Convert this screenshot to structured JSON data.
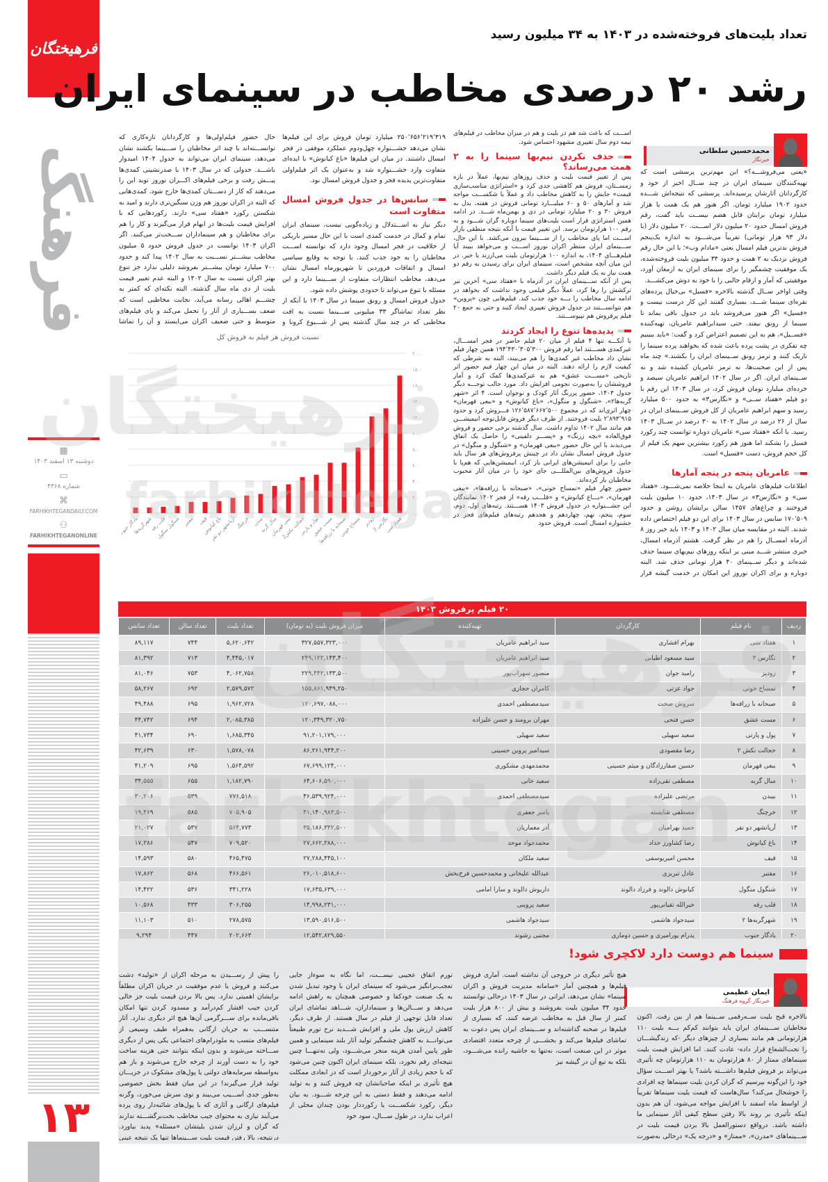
{
  "brand": {
    "logo_text": "فرهیختگان",
    "side_word": "فرهنگ",
    "watermark_fa": "فرهیختگان",
    "watermark_en": "farhikhtegan",
    "accent": "#ed1c24",
    "gray": "#8d8e90"
  },
  "issue": {
    "date": "دوشنبه ۱۳ اسفند ۱۴۰۳",
    "number": "شماره ۴۳۶۸",
    "website": "FARHIKHTEGANDAILY.COM",
    "social": "FARHIKHTEGANONLINE",
    "page_number": "۱۳",
    "icons": [
      "calendar-icon",
      "newspaper-icon",
      "web-icon",
      "social-network-icon"
    ]
  },
  "article": {
    "kicker": "تعداد بلیت‌های فروخته‌شده در ۱۴۰۳ به ۳۴ میلیون رسید",
    "headline": "رشد ۲۰ درصدی مخاطب در سینمای ایران",
    "author": {
      "name": "محمدحسین سلطانی",
      "role": "خبرنگار"
    },
    "col1": {
      "p": [
        "«یعنی می‌فروشـــه؟» این مهم‌ترین پرسشی است که تهیه‌کنندگان سینمای ایران در چند ســال اخیر از خود و کارگردانان آثارشان پرسیده‌اند. پرسشی که نتیجه‌اش شـــده حدود ۱۹۰۲ میلیارد تومان. اگر هنوز هم یک همت یا هزار میلیارد تومان برایتان قابل هضم نیســت باید گفت، رقم فروش امسال حدود ۲۰ میلیون دلار اســـت. ۲۰ میلیون دلار (با دلار ۹۳ هزار تومانی) تقریباً می‌شـــود به اندازه یک‌پنجم فروش بدترین فیلم امسال یعنی «مادام وب»؛ با این حال رقم فروش نزدیک به ۲ همت و حدود ۳۴ میلیون بلیت فروخته‌شده، یک موفقیت چشمگیر را برای سینمای ایران به ارمغان آورد، موفقیتی که آمار و ارقام جالبی را با خود به دوش می‌کشـــد.",
        "وقتی اواخر ســال گذشته بالاخره «فسیل» بی‌خیال پرده‌های نقره‌ای سینما شـــد، بسیاری گفتند این کار درست نیست و «فسیل» اگر هنوز می‌فروشد باید در جدول باقی بماند تا سینما از رونق نیفتد. حتی سیدابراهیم عامریان، تهیه‌کننده «فســیل»، هم به این تصمیم اعتراض کرد و گفت: «باید ببینیم چه تفکری در پشت پرده باعث شده که بخواهند پرده سینما را تاریک کنند و ترمز رونق ســینمای ایران را بکشند.» چند ماه پس از این صحبت‌ها، نه ترمز عامریان کشیده شد و نه ســینمای ایران. اگر در سال ۱۴۰۲ ابراهیم عامریان سیصد و خرده‌ای میلیارد تومان فروش کرد، در سال ۱۴۰۳ این رقم با دو فیلم «هفتاد ســی» و «نگارس۳» به حدود ۵۰۰ میلیارد رسید و سهم ابراهیم عامریان از کل فروش ســینمای ایران در سال از ۲۶ درصد در سال ۱۴۰۲ به ۳۰ درصد در ســال ۱۴۰۳ رسید. با آنکه «هفتاد سی» عامریان دوباره توانست چند رکورد فسیل را بشکند اما هنوز هم رکورد بیشترین سهم یک فیلم از کل حجم فروش، دست «فسیل» است."
      ],
      "sub1": "عامریان پنجه در پنجه آمارها",
      "p2": "اطلاعات فیلم‌های عامریان به اینجا خلاصه نمی‌شـــود. «هفتاد سی» و «نگارس۳» در سال ۱۴۰۳، حدود ۱۰ میلیون بلیت فروختند و چراغ‌های ۱۴۵۷ سالن برایشان روشن و حدود ۱۷۰٬۵۰۹ سانس در سال ۱۴۰۳ برای این دو فیلم اختصاص داده شدند. البته در مقایسه میان سال ۱۴۰۲ و ۱۴۰۳ باید خبر روز ۸ آذرماه امســال را هم در نظر گرفت. هشتم آذرماه امسال، خبری منتشر شـــد مبنی بر اینکه روزهای نیم‌بهای سینما حذف شده‌اند و دیگر ســینمای ۴۰ هزار تومانی حذف شد. البته دوباره و برای اکران نوروز این امکان در خدمت گیشه قرار گرفت اما به هر ترتیب اثرش را روی گیشه ســال ۱۴۰۳ گذاشت. اگر کمی دقیق‌تر به جدول گیشه نگاه کنید، متوجه تفاوت ۱۲۰ هزار نفره میان «مست عشق» و «صبحانه با زرافه‌ها» می‌شوید. با این حال میزان فـــروش «صبحانه با زرافه‌ها» حدود ۳۰۰ میلیون تومان از «مست عشق» بیشتر است. البته این تفاوت در تماشاگر و فروش تنها مربوط به نیم‌بها شدن سینما نیست. افزایش قیمت بلیت هم در دی‌ماه ۱۴۰۳ به ۸۰ هزار تومان و قرار گرفتن این عدد کنار حذف بلیت نیم‌بها، از اتفاقاتی"
    },
    "col2": {
      "p0": "اســـت که باعث شد هم در بلیت و هم در میزان مخاطب در فیلم‌های نیمه دوم سال تغییری مشهود احساس شود.",
      "sub1": "حذف نکردن نیم‌بها سینما را به ۲ همت می‌رساند؟",
      "p1": "پس از تغییر قیمت بلیت و حذف روزهای نیم‌بها، عملاً در بازه زمســتان، فروش هم کاهشی جدی کرد و «استراتژی مناسب‌سازی قیمت» جایش را به کاهش مخاطب داد و عملاً با شکســـت مواجه شد و آمارهای ۵۰ و ۶۰ میلیـــارد تومانی فروش در هفته، بدل به فروش ۳۰ و ۲۰ میلیارد تومانی در دی و بهمن‌ماه شـــد. در ادامه همین استراتژی قرار است بلیت‌های سینما دوباره گران شـــود و به رقم ۱۰۰ هزارتومان برسد. این تغییر قیمت با آنکه نتیجه منطقی بازار اســـت اما پای مخاطب را از ســـینما بیرون می‌کشد. با این حال، ســـینمای ایران منتظر اکران نوروز اســـت و می‌خواهد ببیند آیا فیلم‌هـــای ۱۴۰۴، به اندازه ۱۰۰ هزارتومان بلیت می‌ارزند یا خیر. در این میان آنچه مشخص است، سینمای ایران برای رسیدن به رقم دو همت نیاز به یک فیلم دیگر داشت.",
      "p2": "پس از آنکه ســـینمای ایران در آذرماه با «هفتاد سی» آخرین تیر ترکشش را رها کرد، عملاً دیگر فیلمی وجود نداشت که بخواهد در ادامه سال مخاطب را بـــه خود جذب کند. فیلم‌هایی چون «پروین» هم نتوانســـتند در جدول فروش تغییری ایجاد کنند و حتی به جمع ۲۰ فیلم پرفروش هم نپیوســـتند.",
      "sub2": "پدیده‌ها تنوع را ایجاد کردند",
      "p3": "با آنکـــه تنها ۴ فیلم از میان ۲۰ فیلم حاضر در فجر امســـال، غیرکمدی هســـتند اما رقم فروش ۱۹۴٬۴۳۰٬۳۰۵٬۳۰۰ همین چهار فیلم نشان داد مخاطب غیر کمدی‌ها را هم می‌بیند، البته به شرطی که کیفیت لازم را ارائه دهند. البته در میان این چهار فیم حضور اثر تاریخی «مســـت عشق» هم به غیرکمدی‌ها کمک کرد و آمار فروششان را به‌صورت نجومی افزایش داد. مورد جالب توجـــه دیگر جدول ۱۴۰۳، حضور پررنگ آثار کودک و نوجوان است. ۴ اثر «شهر گربه‌ها۲»، «شنگول و منگول»، «باغ کیانوش» و «ببعی قهرمان» چهار اثری‌اند که در مجموع ۱۲۶٬۵۸۷٬۶۶۷٬۵۰۰ فـــروش کرد و حدود ۲٬۸۹۳٬۹۱۵ بلیت فروختند. از طرف دیگر فروش قابل‌توجه انیمیشـــن هم مانند سال ۱۴۰۲ تداوم داشت. سال گذشته برخی حضور و فروش فوق‌العاده «بچه زرنگ» و «پســـر دلفینی» را حاصل یک اتفاق می‌دیدند با این حال حضور «ببعی قهرمان» و «شنگول و منگول» در جدول فروش امسال نشان داد در چینش پرفروش‌های هر سال باید جایی را برای انیمیشن‌های ایرانی باز کرد، انیمیشن‌هایی که هم‌پا با جدول فروش‌های بین‌المللـــی جای خود را در میان آثار محبوب مخاطبان باز کرده‌اند.",
      "p4": "حضور چهار فیلم «تمساح خونی»، «صبحانه با زرافه‌ها»، «ببعی قهرمان»، «بـــاغ کیانوش» و «قلـــب رقه» از فجر ۱۴۰۲ نمایندگان این جشـــنواره در جدول فروش ۱۴۰۳ هســـتند. رتبه‌های اول، دوم، سوم، پنجم، نهم، چهاردهم و هجدهم رتبه‌های فیلم‌های فجر در جشنواره امسال است. فروش حدود"
    },
    "col3": {
      "p0": "۲۵۰٬۶۵۶٬۲۱۹٬۳۱۹ میلیارد تومان فروش برای این فیلم‌ها نشان می‌دهد جشـــنواره چهل‌ودوم عملکرد موفقی در فجر امسال داشتند. در میان این فیلم‌ها «باغ کیانوش» با ایده‌ای متفاوت وارد جشـــنواره شد و به‌عنوان یک اثر فیلم‌اولی متفاوت‌ترین پدیده فجر و جدول فروش امسال بود.",
      "sub1": "سانس‌ها در جدول فروش امسال متفاوت است",
      "p1": "دیگر نیاز به اســـتدلال و زیاده‌گویی نیست، سینمای ایران تمام و کمال در خدمت کمدی است با این حال مسیر باریکی از خلاقیت در فجر امسال وجود دارد که توانسته اســـت مخاطبان را به خود جذب کنند. با توجه به وقایع سیاسی امسال و اتفاقات فروردین تا شهریورماه امسال نشان می‌دهد، مخاطب انتظارات متفاوت از ســـینما دارد و این مسئله با تنوع می‌تواند تا حدودی پوشش داده شود.",
      "p2": "جدول فروش امسال و رونق سینما در سال ۱۴۰۳ با آنکه از نظر تعداد تماشاگر ۳۳ میلیونی ســـینما نسبت به افت مخاطبی که در چند سال گذشته پس از شـــیوع کرونا و حوادث اجتماعی و سیاسی تجربه شد، قابل توجه است اما هنوز فاصله زیادی با مخاطب ۸۰ و ۸۱ میلیونی سال‌های ۱۳۶۶ و ۱۳۶۹ دارد؛ آن هم در زمانی که جمعیت کشـــور با الان قابل مقایسه نبود. با این"
    },
    "col4": {
      "p0": "حال حضور فیلم‌اولی‌ها و کارگردانان تازه‌کاری که توانســـته‌اند با چند اثر مخاطبان را ســـینما بکشند نشان می‌دهد، سینمای ایران می‌تواند به جدول ۱۴۰۴ امیدوار باشـــد. جدولی که در سال ۱۴۰۳ با صدرنشینی کمدی‌ها پیـــش رفت و برخی فیلم‌های اکـــران نوروز نوید این را می‌دهند که کار از دســـتان کمدی‌ها خارج شود. کمدی‌هایی که البته در اکران نوروز هم وزن سنگین‌تری دارند و امید به شکستن رکورد «هفتاد سی» دارند. رکوردهایی که با افزایش قیمت بلیت‌ها در ابهام قرار می‌گیرند و کار را هم برای مخاطبان و هم سینماداران ســـخت‌تر می‌کنند. اگر اکران ۱۴۰۳ توانست در جدول فروش حدود ۵ میلیون مخاطب بیشـــتر نســـبت به سال ۱۴۰۲ پیدا کند و حدود ۷۰۰ میلیارد تومان بیشـــتر بفروشد دلیلی ندارد جز تنوع بهتر اکران نسبت به سال ۱۴۰۲ و البته عدم تغییر قیمت بلیت از دی ماه سال گذشته. البته نکته‌ای که کمتر به چشـــم اهالی رسانه می‌آید، نجابت مخاطبی است که ضعف بســـیاری از آثار را تحمل می‌کند و پای فیلم‌های متوسط و حتی ضعیف اکران می‌ایستد و آن را تماشا می‌کند. مخاطبی که با افزایش هزینه‌ها و البته ایرادهای آثار هنوز هم ســـینما را خالی نکرده و برای زنده نگه‌داشتن پرده نقره‌ای به تغییرات قیمت بلیت تن می‌دهد. مخاطبی که توقعی از سینما ندارد به جز افزایش کیفیت فیلم‌ها."
    }
  },
  "chart_data": {
    "type": "bar",
    "title": "نسبت فروش هر فیلم به فروش کل",
    "xlabel": "",
    "ylabel": "",
    "ylim": [
      0,
      20
    ],
    "yticks": [
      "۰.۰",
      "۲.۰",
      "۴.۰",
      "۶.۰",
      "۸.۰",
      "۱۰.۰",
      "۱۲.۰",
      "۱۴.۰",
      "۱۶.۰",
      "۱۸.۰",
      "۲۰.۰"
    ],
    "grid": true,
    "bar_color": "#ed1c24",
    "categories": [
      "یادگار جنوب",
      "شهرگربه‌ها",
      "قلب رقه",
      "شنگول منگول",
      "مفتبر",
      "قیف",
      "باغ کیانوش",
      "آرپانشهر دو نفر",
      "خرچنگ",
      "بیبدن",
      "سال گربه",
      "بیبی قهرمان",
      "خجالت نکش2",
      "پول و پارتی",
      "مست عشق",
      "صبحانه با زرافه‌ها",
      "تمساح خونی",
      "زودپز",
      "نگارس 3",
      "هفتاد سی"
    ],
    "values": [
      0.7,
      0.7,
      0.8,
      0.9,
      1.4,
      1.4,
      1.5,
      1.9,
      2.2,
      2.4,
      3.4,
      3.6,
      4.5,
      4.8,
      6.3,
      6.3,
      8.2,
      12.1,
      13.1,
      17.2
    ]
  },
  "table": {
    "title": "۲۰ فیلم پرفروش ۱۴۰۳",
    "headers": [
      "ردیف",
      "نام فیلم",
      "کارگردان",
      "تهیه‌کننده",
      "میزان فروش بلیت (به تومان)",
      "تعداد بلیت",
      "تعداد سالن",
      "تعداد سانس"
    ],
    "rows": [
      [
        "۱",
        "هفتاد سی",
        "بهرام افشاری",
        "سید ابراهیم عامریان",
        "۳۲۷,۵۵۷,۳۲۳,۰۰۰",
        "۵,۶۲۰,۶۴۲",
        "۷۴۴",
        "۸۹,۱۱۷"
      ],
      [
        "۲",
        "نگارس ۳",
        "سید مسعود اطیابی",
        "سید ابراهیم عامریان",
        "۲۴۹,۱۲۲,۱۴۳,۴۰۰",
        "۴,۴۴۵,۰۱۷",
        "۷۱۳",
        "۸۱,۳۹۲"
      ],
      [
        "۳",
        "زودپز",
        "رامبد جوان",
        "منصور سهراب‌پور",
        "۲۲۹,۴۴۲,۱۳۳,۵۰۰",
        "۴,۰۶۲,۷۵۸",
        "۷۵۳",
        "۸۱,۰۴۶"
      ],
      [
        "۴",
        "تمساح خونی",
        "جواد عزتی",
        "کامران حجازی",
        "۱۵۵,۸۶۱,۹۴۹,۲۵۰",
        "۲,۵۷۹,۵۷۳",
        "۶۹۲",
        "۵۸,۲۶۷"
      ],
      [
        "۵",
        "صبحانه با زرافه‌ها",
        "سروش صحت",
        "سیدمصطفی احمدی",
        "۱۲۰,۶۹۷,۰۸۸,۰۰۰",
        "۱,۹۶۲,۷۲۸",
        "۶۹۵",
        "۴۹,۴۸۸"
      ],
      [
        "۶",
        "مست عشق",
        "حسن فتحی",
        "مهران برومند و حسن علیزاده",
        "۱۲۰,۳۴۹,۳۲۰,۷۵۰",
        "۲,۰۸۵,۳۸۵",
        "۶۹۴",
        "۴۴,۷۴۲"
      ],
      [
        "۷",
        "پول و پارتی",
        "سعید سهیلی",
        "سعید سهیلی",
        "۹۱,۲۰۱,۱۷۹,۰۰۰",
        "۱,۶۸۵,۳۴۵",
        "۶۹۰",
        "۴۱,۷۳۴"
      ],
      [
        "۸",
        "خجالت نکش ۲",
        "رضا مقصودی",
        "سیدامیر پروین حسینی",
        "۸۶,۲۶۱,۹۴۴,۲۰۰",
        "۱,۵۷۸,۰۷۸",
        "۶۳۰",
        "۴۲,۶۳۹"
      ],
      [
        "۹",
        "ببعی قهرمان",
        "حسین صفارزادگان و میثم حسینی",
        "محمدمهدی مشکوری",
        "۶۷,۶۹۹,۱۲۴,۰۰۰",
        "۱,۵۶۴,۵۹۲",
        "۶۹۵",
        "۴۱,۲۰۹"
      ],
      [
        "۱۰",
        "سال گربه",
        "مصطفی تقی‌زاده",
        "سعید خانی",
        "۶۴,۶۰۶,۵۹۰,۰۰۰",
        "۱,۱۸۲,۷۹۰",
        "۶۵۵",
        "۳۴,۵۵۵"
      ],
      [
        "۱۱",
        "بیبدن",
        "مرتضی علیزاده",
        "سیدمصطفی احمدی",
        "۴۶,۵۳۹,۹۲۴,۰۰۰",
        "۷۷۶,۵۱۸",
        "۵۳۹",
        "۳۰,۲۰۶"
      ],
      [
        "۱۲",
        "خرچنگ",
        "مصطفی شایسته",
        "یاسر جعفری",
        "۴۱,۱۴۰,۹۸۳,۵۰۰",
        "۷۰۵,۹۰۵",
        "۵۸۵",
        "۱۹,۴۶۹"
      ],
      [
        "۱۳",
        "آرپانشهر دو نفر",
        "حمید بهرامیان",
        "آذر معماریان",
        "۳۵,۱۸۶,۳۴۲,۵۰۰",
        "۵۶۴,۷۷۳",
        "۵۳۷",
        "۲۱,۰۲۷"
      ],
      [
        "۱۴",
        "باغ کیانوش",
        "رضا کشاورز حداد",
        "محمدجواد موحد",
        "۲۷,۶۶۲,۳۸۸,۰۰۰",
        "۷۰۹,۵۲۰",
        "۵۴۷",
        "۱۷,۳۸۶"
      ],
      [
        "۱۵",
        "قیف",
        "محسن امیریوسفی",
        "سعید ملکان",
        "۲۷,۲۸۸,۴۴۵,۱۰۰",
        "۴۶۵,۴۷۵",
        "۵۸۰",
        "۱۴,۵۹۳"
      ],
      [
        "۱۶",
        "مفتبر",
        "عادل تبریزی",
        "عبدالله علیخانی و محمدحسین فرح‌بخش",
        "۲۶,۰۱۰,۵۱۸,۶۰۰",
        "۴۶۶,۵۶۱",
        "۵۶۸",
        "۱۷,۸۶۲"
      ],
      [
        "۱۷",
        "شنگول منگول",
        "کیانوش دالوند و فرزاد دالوند",
        "داریوش دالوند و سارا امامی",
        "۱۷,۶۳۵,۶۳۹,۰۰۰",
        "۳۴۱,۲۲۸",
        "۵۳۶",
        "۱۴,۴۲۲"
      ],
      [
        "۱۸",
        "قلب رقه",
        "خیرالله تقیانی‌پور",
        "سعید پروینی",
        "۱۴,۹۹۸,۲۳۱,۰۰۰",
        "۳۰۶,۲۵۵",
        "۴۳۳",
        "۱۰,۵۶۸"
      ],
      [
        "۱۹",
        "شهرگربه‌ها ۲",
        "سیدجواد هاشمی",
        "سیدجواد هاشمی",
        "۱۳,۵۹۰,۵۱۶,۵۰۰",
        "۲۷۸,۵۷۵",
        "۵۱۰",
        "۱۱,۱۰۳"
      ],
      [
        "۲۰",
        "یادگار جنوب",
        "پدرام پورامیری و حسین دوماری",
        "مجتبی رشوند",
        "۱۲,۵۴۲,۸۲۹,۵۵۰",
        "۲۰۲,۶۶۳",
        "۴۴۷",
        "۹,۲۹۴"
      ]
    ]
  },
  "opinion": {
    "title": "سینما هم دوست دارد لاکچری شود!",
    "author": {
      "name": "ایمان عظیمی",
      "role": "خبرنگار گروه فرهنگ"
    },
    "c1": "بالاخره قبح بلیت ســه‌رقمی ســینما هم از بین رفت. اکنون مخاطبان ســـینمای ایران باید بتوانند کم‌کم بـــه بلیت ۱۱۰ هزارتومانی هم مانند بسیاری از چیزهای دیگر -که زندگیشـــان را تحت‌الشعاع قرار داده- عادت کنند. اما افزایش قیمت بلیت سینماهای ممتاز از ۸۰ هزارتومان به ۱۱۰ هزارتومان چه تأثیری می‌تواند بر فروش فیلم‌ها داشـــته باشد؟ یا بهتر اســـت سؤال خود را این‌گونه بپرسیم که گران کردن بلیت سینماها چه افرادی را خوشحال می‌کند؟ سال‌هاست که قیمت بلیت سینماها تقریباً از اواسط ماه اسفند با افزایش مواجه می‌شود، آن هم بدون اینکه تأثیری بر روند بالا رفتن سطح کیفی آثار سینمایی ما داشته باشد. درواقع دستورالعمل بالا بردن قیمت بلیت در ســـینماهای «مدرن»، «ممتاز» و «درجه یک» درحالی به‌صورت مســـتمر و بدون تغییر رخ می‌دهد که جز تک‌ژانری شدن سینمای ایران",
    "c2": "هیچ تأثیر دیگری در خروجی آن نداشته است. آماری فروش فیلم‌ها و همچنین آمار «سامانه مدیریت فروش و اکران سینما» نشان می‌دهد، ایرانی در سال ۱۴۰۳ درحالی توانستند حدود ۳۴ میلیون بلیت بفروشند و بیش از ۸۰۰ هزار بلیت کمتر از سال قبل به مخاطب عرضه کنند، که بسیاری از فیلم‌ها در صحنه گذاشته‌اند و ســـینمای ایران پس دعوت به تماشای فیلم‌ها می‌کند و بخشـــی از چرخه متعدد اقتصادی موثر در این صنعت است، نه‌تنها به حاشیه رانده می‌شـــود، بلکه به تبع آن در گیشه نیز",
    "c3": "تورم اتفاق عجیبی نیســـت، اما نگاه به سوءاز جایی تعجب‌برانگیز می‌شود که سینمای ایران با وجود تبدیل شدن به یک صنعت خودکفا و خصوصی همچنان به راهش ادامه می‌دهد و ســـالن‌ها و سینماداران، شـــاهد تماشای ایران تعداد قابل توجهی از فیلم در سال هستند. از طرف دیگر، کاهش ارزش پول ملی و افزایش شـــدید نرخ تورم طبیعتاً می‌توانـــد به کاهش چشمگیر تولید آثار بلند سینمایی و همین طور پایین آمدن هزینه منجر می‌شـــود، ولی نه‌تنهـــا چنین نتیجه‌ای رقم نخورد، بلکه سینمای ایران اکنون چنین می‌شود که با حجم زیادی از آثار برخوردار است که در ابعادی ممکلت هیچ تأثیری بر اینکه صاحبانشان چه فروش کنند و به تولید ادامه می‌دهند و فقط دستی به این چرخه شـــود. به بیان دیگر، رکورد شکســـت یا رکورددار بودن چندان محلی از اعراب ندارد، در طول ســـال، سود خود",
    "c4": "را پیش از رســـیدن به مرحله اکران از «تولید» دشت می‌کنند و فروش یا عدم موفقیت در جریان اکران مطلقاً برایشان اهمیتی ندارد. پس بالا بردن قیمت بلیت جز خالی کردن جیب اقشار کم‌درآمد و مسدود کردن تنها امکان باقی‌مانده برای ســـرگرمی آن‌ها هیچ اثر دیگری ندارد. آثار متنســـب به جریان ارگانی به‌همراه طیف وسیعی از فیلم‌های متسب به ملودرام‌های اجتماعی یکی پس از دیگری ســـاخته می‌شوند و بدون اینکه بتوانند حتی هزینه ساخت خود را به دست آورند از چرخه خارج می‌شوند و باز هم به‌واسطه سرمایه‌های دولتی یا پول‌های مشکوک در جریـــان تولید قرار می‌گیرند! در این میان فقط بخش خصوصی به‌طور جدی آســـیب می‌بیند و توی سرش می‌خورد، وگرنه فیلم‌های ارگانی و آثاری که با پول‌های شائبه‌دار روی پرده می‌آیند نیازی به محتوای جیب مخاطب بخت‌برگشـــته ندارند که گران و لرزان شدن بلیتشان «مسئله» پدید بیاورد. درنتیجه، بالا رفتن قیمت بلیت ســـینماها تنها یک نتیجه عینی و آنی درپی می‌آورد که آن نیز کنار هم ایســـتادن سینما با تئاتر و موسیقی کالایی‌شده و لاکچری است!"
  }
}
